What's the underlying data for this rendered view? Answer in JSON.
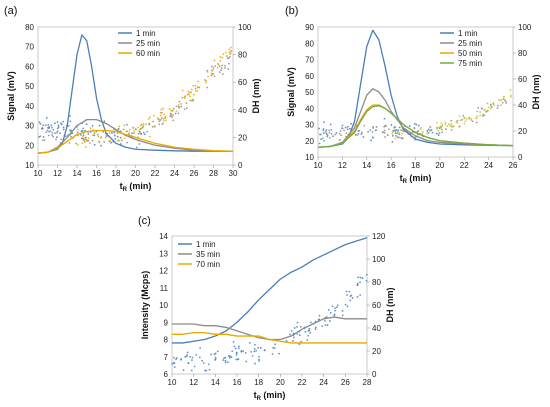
{
  "chart_data": [
    {
      "panel_label": "(a)",
      "type": "line",
      "xlabel_main": "t",
      "xlabel_sub": "R",
      "xlabel_suffix": " (min)",
      "ylabel_left": "Signal (mV)",
      "ylabel_right": "DH (nm)",
      "xlim": [
        10,
        30
      ],
      "ylim_left": [
        10,
        80
      ],
      "ylim_right": [
        0,
        100
      ],
      "x_ticks": [
        10,
        12,
        14,
        16,
        18,
        20,
        22,
        24,
        26,
        28,
        30
      ],
      "y_ticks_left": [
        10,
        20,
        30,
        40,
        50,
        60,
        70,
        80
      ],
      "y_ticks_right": [
        0,
        20,
        40,
        60,
        80,
        100
      ],
      "legend_position": "top-right",
      "series": [
        {
          "name": "1 min",
          "color": "#4a7ebb",
          "x": [
            10,
            11,
            12,
            12.5,
            13,
            13.5,
            14,
            14.5,
            15,
            15.5,
            16,
            16.5,
            17,
            18,
            19,
            20,
            22,
            24,
            26,
            28,
            30
          ],
          "y": [
            16,
            16.5,
            18,
            21,
            30,
            48,
            66,
            76,
            73,
            60,
            44,
            33,
            26,
            21,
            19,
            18,
            17.5,
            17.2,
            17,
            17,
            17
          ]
        },
        {
          "name": "25 min",
          "color": "#8c8c8c",
          "x": [
            10,
            11,
            12,
            13,
            14,
            15,
            16,
            17,
            18,
            19,
            20,
            21,
            22,
            24,
            26,
            28,
            30
          ],
          "y": [
            16,
            16.5,
            19,
            24,
            30,
            33,
            33,
            31,
            28,
            25,
            23,
            21.5,
            20,
            18.5,
            17.5,
            17,
            17
          ]
        },
        {
          "name": "60 min",
          "color": "#e8a800",
          "x": [
            10,
            11,
            12,
            13,
            14,
            15,
            16,
            17,
            18,
            19,
            20,
            21,
            22,
            24,
            26,
            28,
            30
          ],
          "y": [
            16,
            16.5,
            18.5,
            22,
            25.5,
            27,
            27.5,
            27.5,
            27,
            25.5,
            24,
            22.5,
            21,
            19,
            18,
            17.3,
            17
          ]
        }
      ],
      "scatter": [
        {
          "name": "1 min",
          "color": "#4a7ebb",
          "axis": "right",
          "xrange": [
            10,
            21
          ],
          "trend_x": [
            10,
            14,
            16,
            18,
            21
          ],
          "trend_y": [
            28,
            25,
            24,
            22,
            20
          ],
          "spread": 8,
          "count": 90
        },
        {
          "name": "25 min",
          "color": "#8c8c8c",
          "axis": "right",
          "xrange": [
            10,
            30
          ],
          "trend_x": [
            10,
            14,
            18,
            20,
            22,
            24,
            26,
            28,
            30
          ],
          "trend_y": [
            22,
            20,
            21,
            23,
            30,
            40,
            52,
            66,
            80
          ],
          "spread": 6,
          "count": 120
        },
        {
          "name": "60 min",
          "color": "#e8a800",
          "axis": "right",
          "xrange": [
            14,
            30
          ],
          "trend_x": [
            14,
            18,
            20,
            22,
            24,
            26,
            28,
            30
          ],
          "trend_y": [
            19,
            21,
            24,
            31,
            41,
            53,
            70,
            84
          ],
          "spread": 6,
          "count": 120
        }
      ]
    },
    {
      "panel_label": "(b)",
      "type": "line",
      "xlabel_main": "t",
      "xlabel_sub": "R",
      "xlabel_suffix": " (min)",
      "ylabel_left": "Signal (mV)",
      "ylabel_right": "DH (nm)",
      "xlim": [
        10,
        26
      ],
      "ylim_left": [
        10,
        90
      ],
      "ylim_right": [
        0,
        100
      ],
      "x_ticks": [
        10,
        12,
        14,
        16,
        18,
        20,
        22,
        24,
        26
      ],
      "y_ticks_left": [
        10,
        20,
        30,
        40,
        50,
        60,
        70,
        80,
        90
      ],
      "y_ticks_right": [
        0,
        20,
        40,
        60,
        80,
        100
      ],
      "legend_position": "top-right",
      "series": [
        {
          "name": "1 min",
          "color": "#4a7ebb",
          "x": [
            10,
            11,
            12,
            12.5,
            13,
            13.5,
            14,
            14.5,
            15,
            15.5,
            16,
            16.5,
            17,
            18,
            19,
            20,
            22,
            24,
            26
          ],
          "y": [
            16,
            16.5,
            18,
            22,
            32,
            55,
            78,
            88,
            82,
            66,
            48,
            35,
            27,
            21,
            19,
            18,
            17.5,
            17.2,
            17
          ]
        },
        {
          "name": "25 min",
          "color": "#8c8c8c",
          "x": [
            10,
            11,
            12,
            13,
            13.5,
            14,
            14.5,
            15,
            15.5,
            16,
            17,
            18,
            19,
            20,
            22,
            24,
            26
          ],
          "y": [
            16,
            16.5,
            19,
            28,
            38,
            48,
            52,
            50,
            45,
            38,
            28,
            23,
            20,
            19,
            18,
            17.5,
            17
          ]
        },
        {
          "name": "50 min",
          "color": "#e8a800",
          "x": [
            10,
            11,
            12,
            13,
            13.5,
            14,
            14.5,
            15,
            15.5,
            16,
            17,
            18,
            19,
            20,
            22,
            24,
            26
          ],
          "y": [
            16,
            16.5,
            18.5,
            26,
            33,
            39,
            42,
            42,
            40,
            37,
            30,
            25,
            22,
            20,
            18.5,
            17.5,
            17
          ]
        },
        {
          "name": "75 min",
          "color": "#70ad47",
          "x": [
            10,
            11,
            12,
            13,
            13.5,
            14,
            14.5,
            15,
            15.5,
            16,
            17,
            18,
            19,
            20,
            22,
            24,
            26
          ],
          "y": [
            16,
            16.5,
            18.5,
            25,
            32,
            38,
            41,
            41.5,
            40,
            37,
            30,
            25,
            22,
            20,
            18.5,
            17.5,
            17
          ]
        }
      ],
      "scatter": [
        {
          "name": "1 min",
          "color": "#4a7ebb",
          "axis": "right",
          "xrange": [
            10,
            20
          ],
          "trend_x": [
            10,
            13,
            16,
            18,
            20
          ],
          "trend_y": [
            20,
            22,
            20,
            19,
            19
          ],
          "spread": 8,
          "count": 80
        },
        {
          "name": "25 min",
          "color": "#8c8c8c",
          "axis": "right",
          "xrange": [
            10,
            26
          ],
          "trend_x": [
            10,
            14,
            18,
            20,
            22,
            24,
            26
          ],
          "trend_y": [
            18,
            20,
            19,
            21,
            27,
            36,
            48
          ],
          "spread": 5,
          "count": 90
        },
        {
          "name": "75 min",
          "color": "#c8c030",
          "axis": "right",
          "xrange": [
            16,
            26
          ],
          "trend_x": [
            16,
            18,
            20,
            22,
            24,
            26
          ],
          "trend_y": [
            18,
            19,
            22,
            28,
            37,
            50
          ],
          "spread": 4,
          "count": 80
        }
      ]
    },
    {
      "panel_label": "(c)",
      "type": "line",
      "xlabel_main": "t",
      "xlabel_sub": "R",
      "xlabel_suffix": " (min)",
      "ylabel_left": "Intensity (Mcps)",
      "ylabel_right": "DH (nm)",
      "xlim": [
        10,
        28
      ],
      "ylim_left": [
        6,
        14
      ],
      "ylim_right": [
        0,
        120
      ],
      "x_ticks": [
        10,
        12,
        14,
        16,
        18,
        20,
        22,
        24,
        26,
        28
      ],
      "y_ticks_left": [
        6,
        7,
        8,
        9,
        10,
        11,
        12,
        13,
        14
      ],
      "y_ticks_right": [
        0,
        20,
        40,
        60,
        80,
        100,
        120
      ],
      "legend_position": "top-left",
      "series": [
        {
          "name": "1 min",
          "color": "#4a7ebb",
          "x": [
            10,
            11,
            12,
            13,
            14,
            15,
            16,
            17,
            18,
            19,
            20,
            21,
            22,
            23,
            24,
            25,
            26,
            27,
            28
          ],
          "y": [
            7.8,
            7.8,
            7.9,
            8.0,
            8.2,
            8.5,
            9.0,
            9.6,
            10.3,
            10.9,
            11.5,
            11.9,
            12.2,
            12.6,
            12.9,
            13.2,
            13.5,
            13.7,
            13.9
          ]
        },
        {
          "name": "35 min",
          "color": "#8c8c8c",
          "x": [
            10,
            11,
            12,
            13,
            14,
            15,
            16,
            17,
            18,
            19,
            20,
            21,
            22,
            23,
            24,
            25,
            26,
            27,
            28
          ],
          "y": [
            8.9,
            8.9,
            8.9,
            8.8,
            8.8,
            8.7,
            8.5,
            8.3,
            8.1,
            8.0,
            8.0,
            8.2,
            8.6,
            8.9,
            9.2,
            9.3,
            9.2,
            9.2,
            9.2
          ]
        },
        {
          "name": "70 min",
          "color": "#e8a800",
          "x": [
            10,
            11,
            12,
            13,
            14,
            15,
            16,
            17,
            18,
            19,
            20,
            21,
            22,
            23,
            24,
            25,
            26,
            27,
            28
          ],
          "y": [
            8.3,
            8.3,
            8.4,
            8.4,
            8.3,
            8.3,
            8.2,
            8.2,
            8.2,
            8.0,
            7.9,
            7.8,
            7.8,
            7.8,
            7.8,
            7.8,
            7.8,
            7.8,
            7.8
          ]
        }
      ],
      "scatter": [
        {
          "name": "1 min",
          "color": "#4a7ebb",
          "axis": "right",
          "xrange": [
            10,
            28
          ],
          "trend_x": [
            10,
            14,
            18,
            20,
            22,
            24,
            26,
            28
          ],
          "trend_y": [
            12,
            14,
            20,
            28,
            36,
            48,
            62,
            84
          ],
          "spread": 9,
          "count": 160
        }
      ]
    }
  ]
}
